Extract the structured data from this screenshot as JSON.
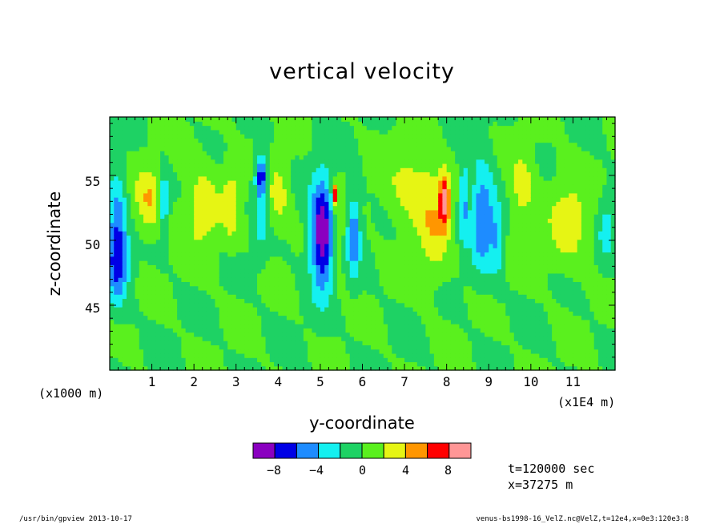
{
  "chart_data": {
    "type": "heatmap",
    "title": "vertical velocity",
    "xlabel": "y-coordinate",
    "ylabel": "z-coordinate",
    "x_units_note": "(x1000 m)",
    "x_scale_note": "(x1E4 m)",
    "xlim": [
      0,
      12
    ],
    "ylim": [
      40,
      59.5
    ],
    "xticks": [
      "1",
      "2",
      "3",
      "4",
      "5",
      "6",
      "7",
      "8",
      "9",
      "10",
      "11"
    ],
    "yticks": [
      "45",
      "50",
      "55"
    ],
    "colorbar": {
      "colors": [
        "#8a00c0",
        "#0000e6",
        "#1e8cff",
        "#14f0f0",
        "#1ed264",
        "#5af01e",
        "#e6f514",
        "#ff9600",
        "#ff0000",
        "#ff9696"
      ],
      "tick_labels": [
        "-8",
        "-4",
        "0",
        "4",
        "8"
      ]
    },
    "background_value_color": "#5af01e",
    "features": [
      {
        "y": 0.18,
        "z": 50.5,
        "value": -6,
        "sy": 0.22,
        "sz": 4.5
      },
      {
        "y": 0.2,
        "z": 48.0,
        "value": -3,
        "sy": 0.3,
        "sz": 2.5
      },
      {
        "y": 0.95,
        "z": 53.0,
        "value": 4,
        "sy": 0.35,
        "sz": 2.5
      },
      {
        "y": 1.28,
        "z": 53.0,
        "value": -5,
        "sy": 0.12,
        "sz": 2.5
      },
      {
        "y": 2.2,
        "z": 52.5,
        "value": 3,
        "sy": 0.45,
        "sz": 3.5
      },
      {
        "y": 2.9,
        "z": 53.0,
        "value": 3,
        "sy": 0.2,
        "sz": 3.0
      },
      {
        "y": 3.6,
        "z": 55.0,
        "value": -7,
        "sy": 0.14,
        "sz": 1.5
      },
      {
        "y": 3.6,
        "z": 52.0,
        "value": -3,
        "sy": 0.15,
        "sz": 3.0
      },
      {
        "y": 4.0,
        "z": 53.5,
        "value": 3,
        "sy": 0.25,
        "sz": 2.5
      },
      {
        "y": 5.05,
        "z": 50.5,
        "value": -10,
        "sy": 0.28,
        "sz": 4.2
      },
      {
        "y": 5.35,
        "z": 53.5,
        "value": 8,
        "sy": 0.06,
        "sz": 0.8
      },
      {
        "y": 5.4,
        "z": 50.5,
        "value": 3,
        "sy": 0.15,
        "sz": 3.5
      },
      {
        "y": 5.8,
        "z": 50.5,
        "value": -6,
        "sy": 0.15,
        "sz": 3.0
      },
      {
        "y": 7.2,
        "z": 54.0,
        "value": 3,
        "sy": 0.6,
        "sz": 3.0
      },
      {
        "y": 7.95,
        "z": 53.0,
        "value": 8,
        "sy": 0.12,
        "sz": 2.0
      },
      {
        "y": 7.7,
        "z": 51.0,
        "value": 3,
        "sy": 0.35,
        "sz": 4.0
      },
      {
        "y": 8.4,
        "z": 53.0,
        "value": -5,
        "sy": 0.1,
        "sz": 3.0
      },
      {
        "y": 8.85,
        "z": 52.0,
        "value": -6,
        "sy": 0.28,
        "sz": 4.0
      },
      {
        "y": 9.2,
        "z": 50.0,
        "value": -3,
        "sy": 0.15,
        "sz": 3.0
      },
      {
        "y": 9.8,
        "z": 54.0,
        "value": 3,
        "sy": 0.3,
        "sz": 3.0
      },
      {
        "y": 10.9,
        "z": 51.5,
        "value": 3,
        "sy": 0.5,
        "sz": 3.5
      },
      {
        "y": 11.8,
        "z": 51.0,
        "value": -3,
        "sy": 0.2,
        "sz": 2.5
      }
    ]
  },
  "legend_labels": {
    "m8": "−8",
    "m4": "−4",
    "z0": "0",
    "p4": "4",
    "p8": "8"
  },
  "info": {
    "time": "t=120000 sec",
    "xpos": "x=37275 m"
  },
  "footer": {
    "left": "/usr/bin/gpview   2013-10-17",
    "right": "venus-bs1998-16_VelZ.nc@VelZ,t=12e4,x=0e3:120e3:8"
  }
}
